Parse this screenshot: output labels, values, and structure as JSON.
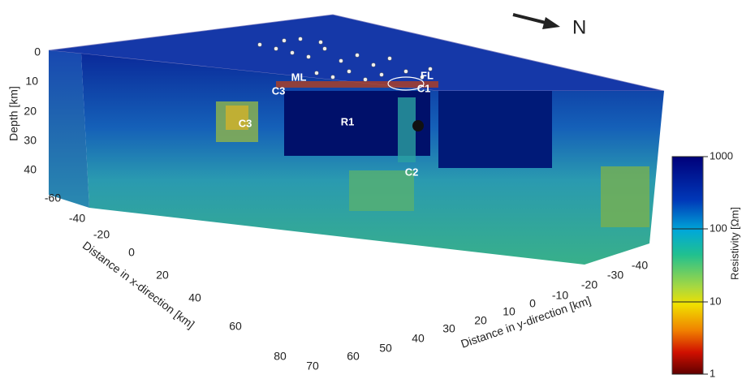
{
  "north_arrow": "N",
  "depth_axis": {
    "label": "Depth [km]",
    "ticks": [
      "0",
      "10",
      "20",
      "30",
      "40"
    ]
  },
  "x_axis": {
    "label": "Distance in x-direction [km]",
    "ticks": [
      "-60",
      "-40",
      "-20",
      "0",
      "20",
      "40",
      "60",
      "80"
    ]
  },
  "y_axis": {
    "label": "Distance in y-direction [km]",
    "ticks": [
      "70",
      "60",
      "50",
      "40",
      "30",
      "20",
      "10",
      "0",
      "-10",
      "-20",
      "-30",
      "-40"
    ]
  },
  "colorbar": {
    "label": "Resistivity [Ωm]",
    "ticks": [
      "1000",
      "100",
      "10",
      "1"
    ]
  },
  "annotations": [
    "ML",
    "FL",
    "C3",
    "C1",
    "C3",
    "R1",
    "C2"
  ]
}
